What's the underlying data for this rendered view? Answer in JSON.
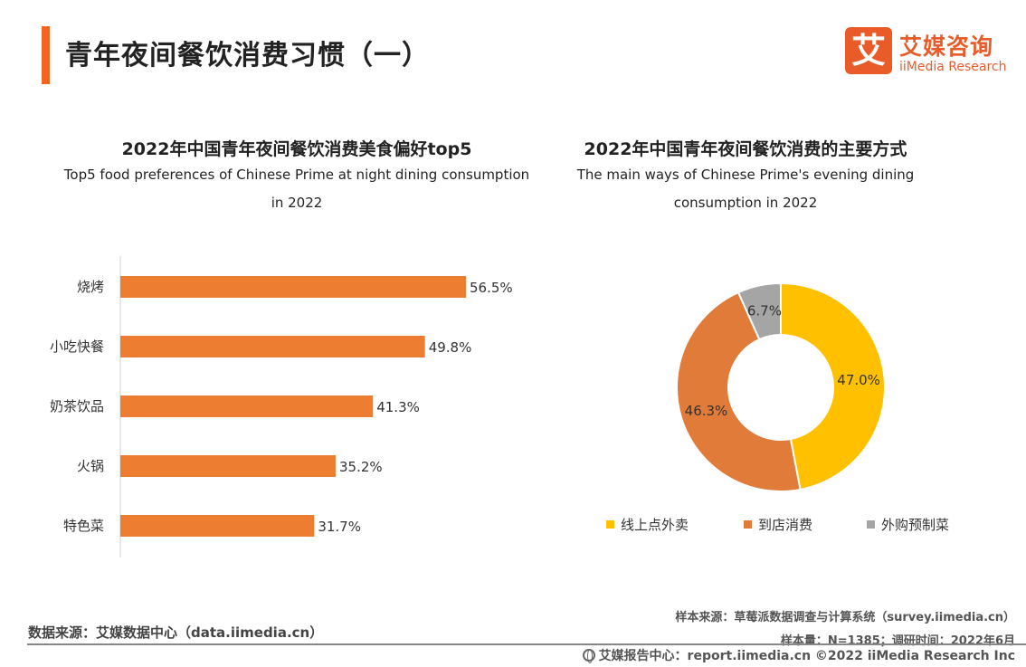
{
  "header": {
    "title": "青年夜间餐饮消费习惯（一）",
    "logo_mark": "艾",
    "logo_cn": "艾媒咨询",
    "logo_en": "iiMedia Research"
  },
  "colors": {
    "accent": "#f16522",
    "bar": "#ed7d31",
    "slice_online": "#ffc000",
    "slice_store": "#e07b39",
    "slice_premade": "#a5a5a5"
  },
  "chart_data": [
    {
      "type": "bar",
      "orientation": "horizontal",
      "title": "2022年中国青年夜间餐饮消费美食偏好top5",
      "subtitle": "Top5 food preferences of Chinese Prime at night dining consumption in 2022",
      "subtitle_lines": [
        "Top5 food preferences of Chinese Prime at night dining consumption",
        "in 2022"
      ],
      "categories": [
        "烧烤",
        "小吃快餐",
        "奶茶饮品",
        "火锅",
        "特色菜"
      ],
      "values": [
        56.5,
        49.8,
        41.3,
        35.2,
        31.7
      ],
      "value_labels": [
        "56.5%",
        "49.8%",
        "41.3%",
        "35.2%",
        "31.7%"
      ],
      "unit": "%",
      "xlim": [
        0,
        70
      ],
      "grid": false
    },
    {
      "type": "pie",
      "style": "donut",
      "title": "2022年中国青年夜间餐饮消费的主要方式",
      "subtitle": "The main ways of Chinese  Prime's evening dining consumption in 2022",
      "subtitle_lines": [
        "The main ways of Chinese  Prime's evening dining",
        "consumption in 2022"
      ],
      "categories": [
        "线上点外卖",
        "到店消费",
        "外购预制菜"
      ],
      "values": [
        47.0,
        46.3,
        6.7
      ],
      "value_labels": [
        "47.0%",
        "46.3%",
        "6.7%"
      ],
      "legend": "bottom"
    }
  ],
  "sources": {
    "data_source": "数据来源：艾媒数据中心（data.iimedia.cn）",
    "sample_source": "样本来源：草莓派数据调查与计算系统（survey.iimedia.cn）",
    "sample_size": "样本量：N=1385；调研时间：2022年6月",
    "footer": "艾媒报告中心：report.iimedia.cn  ©2022  iiMedia Research  Inc"
  }
}
